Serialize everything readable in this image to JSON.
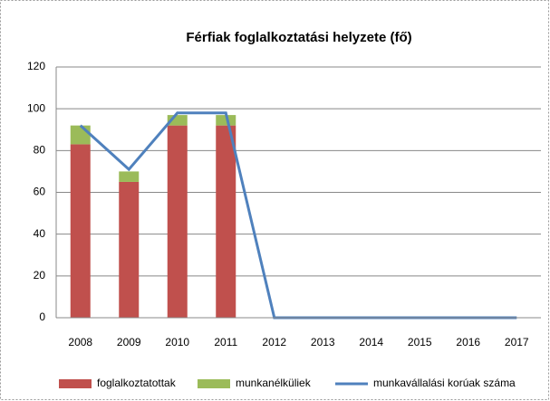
{
  "chart_data": {
    "type": "bar_line",
    "title": "Férfiak foglalkoztatási helyzete (fő)",
    "categories": [
      "2008",
      "2009",
      "2010",
      "2011",
      "2012",
      "2013",
      "2014",
      "2015",
      "2016",
      "2017"
    ],
    "series": [
      {
        "name": "foglalkoztatottak",
        "color": "#c0504d",
        "kind": "bar",
        "values": [
          83,
          65,
          92,
          92,
          0,
          0,
          0,
          0,
          0,
          0
        ]
      },
      {
        "name": "munkanélküliek",
        "color": "#9bbb59",
        "kind": "bar",
        "values": [
          9,
          5,
          5,
          5,
          0,
          0,
          0,
          0,
          0,
          0
        ]
      },
      {
        "name": "munkavállalási korúak száma",
        "color": "#4f81bd",
        "kind": "line",
        "values": [
          92,
          71,
          98,
          98,
          0,
          0,
          0,
          0,
          0,
          0
        ]
      }
    ],
    "ylim": [
      0,
      120
    ],
    "yticks": [
      0,
      20,
      40,
      60,
      80,
      100,
      120
    ],
    "grid": true,
    "stacked": true,
    "legend": "bottom"
  }
}
